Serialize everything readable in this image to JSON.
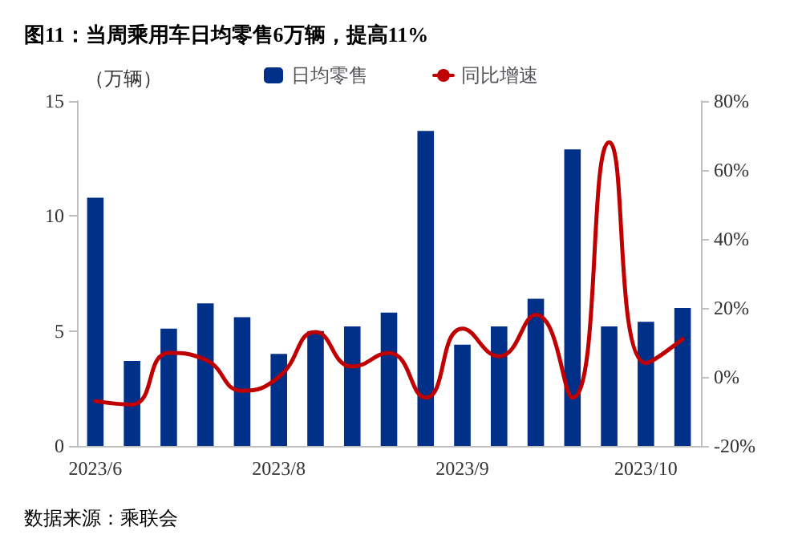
{
  "chart_data": {
    "type": "bar",
    "title": "图11：当周乘用车日均零售6万辆，提高11%",
    "ylabel": "（万辆）",
    "annotations": [
      "数据来源：乘联会"
    ],
    "categories": [
      "2023/6",
      null,
      null,
      null,
      null,
      "2023/8",
      null,
      null,
      null,
      null,
      "2023/9",
      null,
      null,
      null,
      null,
      "2023/10",
      null
    ],
    "series": [
      {
        "name": "日均零售",
        "color": "#003087",
        "values": [
          10.8,
          3.7,
          5.1,
          6.2,
          5.6,
          4.0,
          5.0,
          5.2,
          5.8,
          13.7,
          4.4,
          5.2,
          6.4,
          12.9,
          5.2,
          5.4,
          6.0
        ]
      },
      {
        "name": "同比增速",
        "type": "line",
        "axis": "y2",
        "color": "#c00000",
        "values": [
          -7,
          -8,
          7,
          5,
          -4,
          0,
          13,
          3,
          7,
          -6,
          14,
          6,
          18,
          -6,
          68,
          4,
          11
        ]
      }
    ],
    "ylim": [
      0,
      15
    ],
    "yticks": [
      0,
      5,
      10,
      15
    ],
    "y2lim": [
      -20,
      80
    ],
    "y2ticks": [
      {
        "value": -20,
        "label": "-20%"
      },
      {
        "value": 0,
        "label": "0%"
      },
      {
        "value": 20,
        "label": "20%"
      },
      {
        "value": 40,
        "label": "40%"
      },
      {
        "value": 60,
        "label": "60%"
      },
      {
        "value": 80,
        "label": "80%"
      }
    ],
    "grid": false,
    "legend": "top",
    "marker": "none"
  }
}
